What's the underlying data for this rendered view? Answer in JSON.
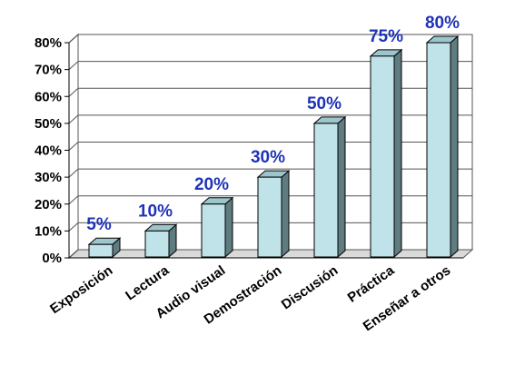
{
  "chart_data": {
    "type": "bar",
    "title": "",
    "xlabel": "",
    "ylabel": "",
    "categories": [
      "Exposición",
      "Lectura",
      "Audio visual",
      "Demostración",
      "Discusión",
      "Práctica",
      "Enseñar a otros"
    ],
    "values": [
      5,
      10,
      20,
      30,
      50,
      75,
      80
    ],
    "data_labels": [
      "5%",
      "10%",
      "20%",
      "30%",
      "50%",
      "75%",
      "80%"
    ],
    "ylim": [
      0,
      80
    ],
    "y_ticks": [
      0,
      10,
      20,
      30,
      40,
      50,
      60,
      70,
      80
    ],
    "y_tick_labels": [
      "0%",
      "10%",
      "20%",
      "30%",
      "40%",
      "50%",
      "60%",
      "70%",
      "80%"
    ],
    "grid": true,
    "legend": "none",
    "style": "3d-columns",
    "colors": {
      "bar_front": "#bfe3e8",
      "bar_side": "#5f7c80",
      "bar_top": "#9cc6cc",
      "bar_outline": "#000000",
      "data_label": "#1f33b6",
      "grid": "#555555",
      "axis": "#000000",
      "floor": "#d9d9d9"
    }
  }
}
